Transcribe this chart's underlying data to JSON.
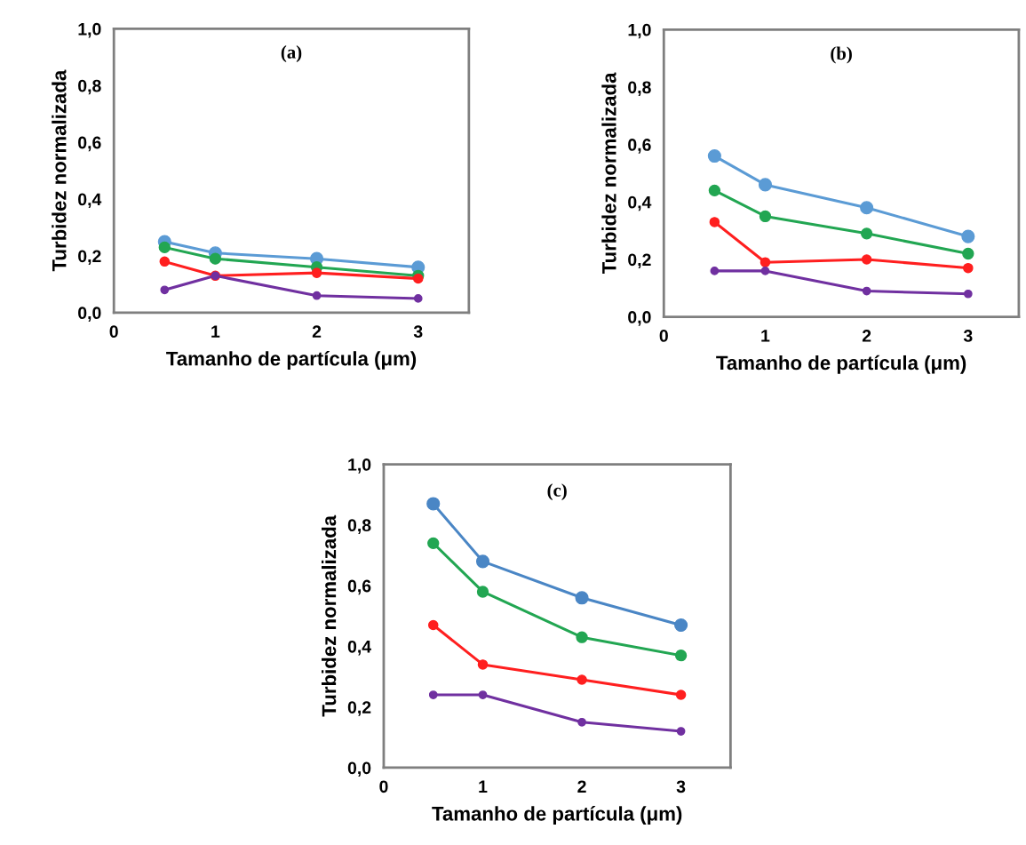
{
  "chart_data": [
    {
      "type": "line",
      "title": "(a)",
      "xlabel": "Tamanho de partícula (μm)",
      "ylabel": "Turbidez normalizada",
      "x": [
        0.5,
        1,
        2,
        3
      ],
      "xlim": [
        0,
        3.5
      ],
      "xticks": [
        0,
        1,
        2,
        3
      ],
      "ylim": [
        0,
        1.0
      ],
      "yticks": [
        {
          "value": 0,
          "label": "0,0"
        },
        {
          "value": 0.2,
          "label": "0,2"
        },
        {
          "value": 0.4,
          "label": "0,4"
        },
        {
          "value": 0.6,
          "label": "0,6"
        },
        {
          "value": 0.8,
          "label": "0,8"
        },
        {
          "value": 1.0,
          "label": "1,0"
        }
      ],
      "grid": false,
      "marker": "circle",
      "line_style": "solid",
      "series": [
        {
          "color": "#5b9bd5",
          "values": [
            0.25,
            0.21,
            0.19,
            0.16
          ]
        },
        {
          "color": "#22a652",
          "values": [
            0.23,
            0.19,
            0.16,
            0.13
          ]
        },
        {
          "color": "#ff1f1f",
          "values": [
            0.18,
            0.13,
            0.14,
            0.12
          ]
        },
        {
          "color": "#7030a0",
          "values": [
            0.08,
            0.13,
            0.06,
            0.05
          ]
        }
      ]
    },
    {
      "type": "line",
      "title": "(b)",
      "xlabel": "Tamanho de partícula (μm)",
      "ylabel": "Turbidez normalizada",
      "x": [
        0.5,
        1,
        2,
        3
      ],
      "xlim": [
        0,
        3.5
      ],
      "xticks": [
        0,
        1,
        2,
        3
      ],
      "ylim": [
        0,
        1.0
      ],
      "yticks": [
        {
          "value": 0,
          "label": "0,0"
        },
        {
          "value": 0.2,
          "label": "0,2"
        },
        {
          "value": 0.4,
          "label": "0,4"
        },
        {
          "value": 0.6,
          "label": "0,6"
        },
        {
          "value": 0.8,
          "label": "0,8"
        },
        {
          "value": 1.0,
          "label": "1,0"
        }
      ],
      "grid": false,
      "marker": "circle",
      "line_style": "solid",
      "series": [
        {
          "color": "#5b9bd5",
          "values": [
            0.56,
            0.46,
            0.38,
            0.28
          ]
        },
        {
          "color": "#22a652",
          "values": [
            0.44,
            0.35,
            0.29,
            0.22
          ]
        },
        {
          "color": "#ff1f1f",
          "values": [
            0.33,
            0.19,
            0.2,
            0.17
          ]
        },
        {
          "color": "#7030a0",
          "values": [
            0.16,
            0.16,
            0.09,
            0.08
          ]
        }
      ]
    },
    {
      "type": "line",
      "title": "(c)",
      "xlabel": "Tamanho de partícula (μm)",
      "ylabel": "Turbidez normalizada",
      "x": [
        0.5,
        1,
        2,
        3
      ],
      "xlim": [
        0,
        3.5
      ],
      "xticks": [
        0,
        1,
        2,
        3
      ],
      "ylim": [
        0,
        1.0
      ],
      "yticks": [
        {
          "value": 0,
          "label": "0,0"
        },
        {
          "value": 0.2,
          "label": "0,2"
        },
        {
          "value": 0.4,
          "label": "0,4"
        },
        {
          "value": 0.6,
          "label": "0,6"
        },
        {
          "value": 0.8,
          "label": "0,8"
        },
        {
          "value": 1.0,
          "label": "1,0"
        }
      ],
      "grid": false,
      "marker": "circle",
      "line_style": "solid",
      "series": [
        {
          "color": "#4a86c5",
          "values": [
            0.87,
            0.68,
            0.56,
            0.47
          ]
        },
        {
          "color": "#22a652",
          "values": [
            0.74,
            0.58,
            0.43,
            0.37
          ]
        },
        {
          "color": "#ff1f1f",
          "values": [
            0.47,
            0.34,
            0.29,
            0.24
          ]
        },
        {
          "color": "#7030a0",
          "values": [
            0.24,
            0.24,
            0.15,
            0.12
          ]
        }
      ]
    }
  ]
}
